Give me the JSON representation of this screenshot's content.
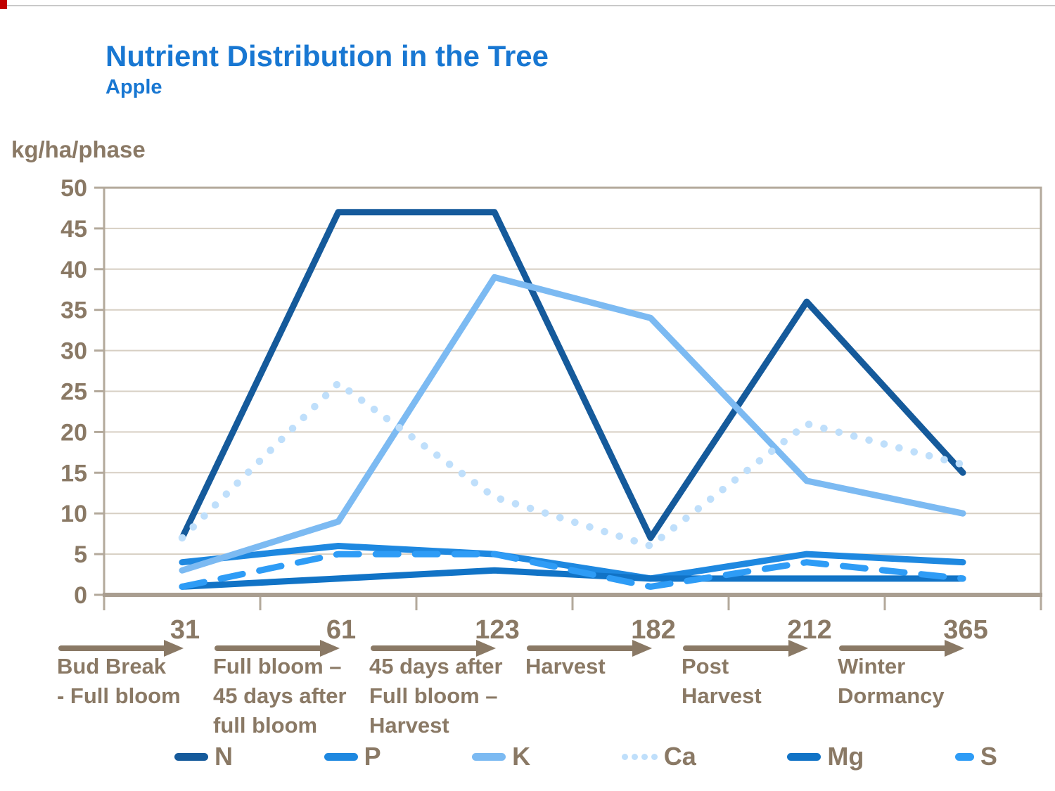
{
  "header": {
    "title": "Nutrient Distribution in the Tree",
    "subtitle": "Apple"
  },
  "y_axis_label": "kg/ha/phase",
  "colors": {
    "title_blue": "#1877d2",
    "text_brown": "#8a7965",
    "axis_frame": "#b3a99b",
    "axis_bottom": "#a99e90",
    "gridline": "#d7cfc3"
  },
  "chart_data": {
    "type": "line",
    "title": "Nutrient Distribution in the Tree",
    "subtitle": "Apple",
    "ylabel": "kg/ha/phase",
    "xlabel": "",
    "ylim": [
      0,
      50
    ],
    "ytick_step": 5,
    "grid": "horizontal",
    "legend_position": "bottom",
    "categories": [
      "31",
      "61",
      "123",
      "182",
      "212",
      "365"
    ],
    "phases": [
      {
        "day": "31",
        "label_lines": [
          "Bud Break",
          "- Full bloom"
        ]
      },
      {
        "day": "61",
        "label_lines": [
          "Full bloom –",
          "45 days after",
          "full bloom"
        ]
      },
      {
        "day": "123",
        "label_lines": [
          "45 days after",
          "Full bloom –",
          "Harvest"
        ]
      },
      {
        "day": "182",
        "label_lines": [
          "Harvest"
        ]
      },
      {
        "day": "212",
        "label_lines": [
          "Post",
          "Harvest"
        ]
      },
      {
        "day": "365",
        "label_lines": [
          "Winter",
          "Dormancy"
        ]
      }
    ],
    "series": [
      {
        "name": "N",
        "color": "#155a9b",
        "style": "solid",
        "values": [
          7,
          47,
          47,
          7,
          36,
          15
        ]
      },
      {
        "name": "P",
        "color": "#1e88e0",
        "style": "solid",
        "values": [
          4,
          6,
          5,
          2,
          5,
          4
        ]
      },
      {
        "name": "K",
        "color": "#7cbaf2",
        "style": "solid",
        "values": [
          3,
          9,
          39,
          34,
          14,
          10
        ]
      },
      {
        "name": "Ca",
        "color": "#bfdffb",
        "style": "dotted",
        "values": [
          7,
          26,
          12,
          6,
          21,
          16
        ]
      },
      {
        "name": "Mg",
        "color": "#1173c6",
        "style": "solid",
        "values": [
          1,
          2,
          3,
          2,
          2,
          2
        ]
      },
      {
        "name": "S",
        "color": "#2e9cf6",
        "style": "dashed",
        "values": [
          1,
          5,
          5,
          1,
          4,
          2
        ]
      }
    ]
  }
}
